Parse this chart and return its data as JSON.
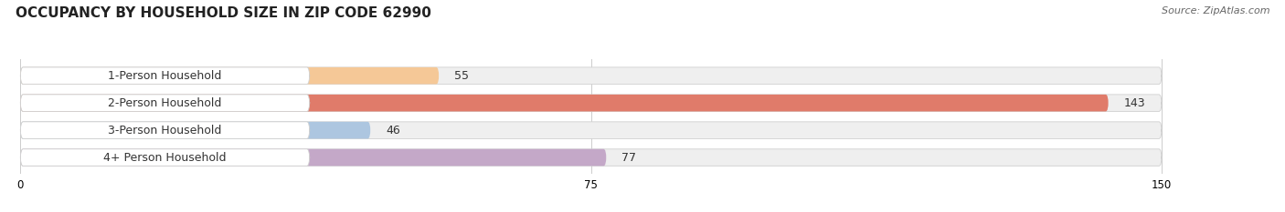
{
  "title": "OCCUPANCY BY HOUSEHOLD SIZE IN ZIP CODE 62990",
  "source": "Source: ZipAtlas.com",
  "categories": [
    "1-Person Household",
    "2-Person Household",
    "3-Person Household",
    "4+ Person Household"
  ],
  "values": [
    55,
    143,
    46,
    77
  ],
  "bar_colors": [
    "#f5c897",
    "#e07b6a",
    "#adc6e0",
    "#c4a8c8"
  ],
  "bar_bg_color": "#efefef",
  "label_bg_color": "#ffffff",
  "xlim": [
    0,
    150
  ],
  "xticks": [
    0,
    75,
    150
  ],
  "title_fontsize": 11,
  "label_fontsize": 9,
  "value_fontsize": 9,
  "bar_height": 0.62,
  "background_color": "#ffffff"
}
